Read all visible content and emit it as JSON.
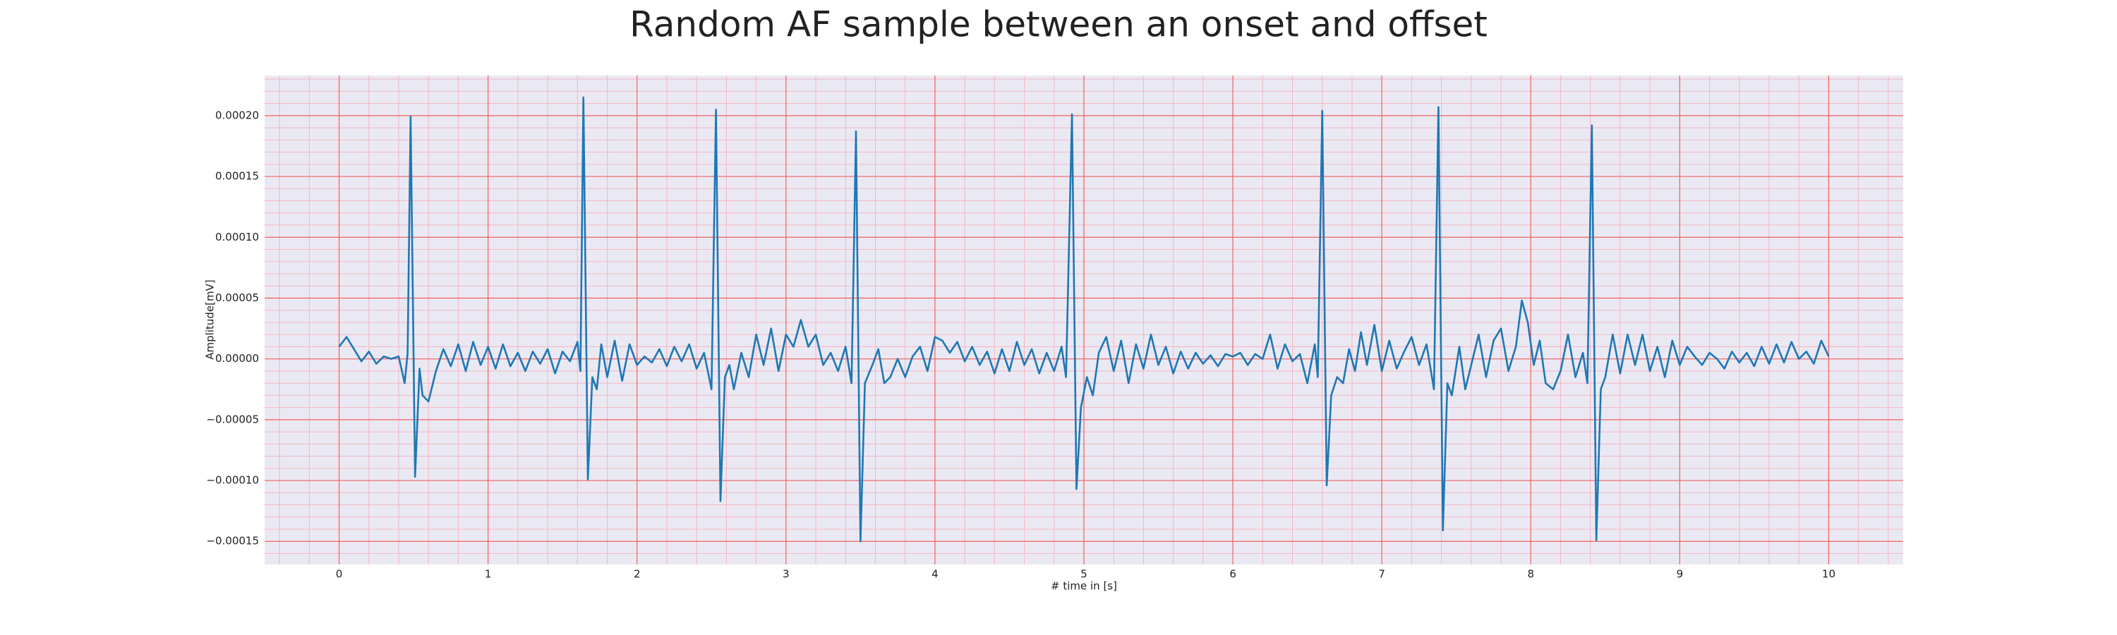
{
  "chart_data": {
    "type": "line",
    "title": "Random AF sample between an onset and offset",
    "xlabel": "# time in [s]",
    "ylabel": "Amplitude[mV]",
    "color": "#1f77b4",
    "grid": true,
    "minor_grid": true,
    "xlim": [
      -0.5,
      10.5
    ],
    "ylim": [
      -0.000169,
      0.000233
    ],
    "xticks": [
      0,
      1,
      2,
      3,
      4,
      5,
      6,
      7,
      8,
      9,
      10
    ],
    "yticks": [
      {
        "value": 0.0002,
        "label": "0.00020"
      },
      {
        "value": 0.00015,
        "label": "0.00015"
      },
      {
        "value": 0.0001,
        "label": "0.00010"
      },
      {
        "value": 5e-05,
        "label": "0.00005"
      },
      {
        "value": 0,
        "label": "0.00000"
      },
      {
        "value": -5e-05,
        "label": "−0.00005"
      },
      {
        "value": -0.0001,
        "label": "−0.00010"
      },
      {
        "value": -0.00015,
        "label": "−0.00015"
      }
    ],
    "x": [
      0,
      0.05,
      0.1,
      0.15,
      0.2,
      0.25,
      0.3,
      0.35,
      0.4,
      0.44,
      0.46,
      0.48,
      0.51,
      0.54,
      0.56,
      0.6,
      0.65,
      0.7,
      0.75,
      0.8,
      0.85,
      0.9,
      0.95,
      1,
      1.05,
      1.1,
      1.15,
      1.2,
      1.25,
      1.3,
      1.35,
      1.4,
      1.45,
      1.5,
      1.55,
      1.6,
      1.62,
      1.64,
      1.67,
      1.7,
      1.73,
      1.76,
      1.8,
      1.85,
      1.9,
      1.95,
      2,
      2.05,
      2.1,
      2.15,
      2.2,
      2.25,
      2.3,
      2.35,
      2.4,
      2.45,
      2.5,
      2.53,
      2.56,
      2.59,
      2.62,
      2.65,
      2.7,
      2.75,
      2.8,
      2.85,
      2.9,
      2.95,
      3,
      3.05,
      3.1,
      3.15,
      3.2,
      3.25,
      3.3,
      3.35,
      3.4,
      3.44,
      3.47,
      3.5,
      3.53,
      3.58,
      3.62,
      3.66,
      3.7,
      3.75,
      3.8,
      3.85,
      3.9,
      3.95,
      4,
      4.05,
      4.1,
      4.15,
      4.2,
      4.25,
      4.3,
      4.35,
      4.4,
      4.45,
      4.5,
      4.55,
      4.6,
      4.65,
      4.7,
      4.75,
      4.8,
      4.85,
      4.88,
      4.92,
      4.95,
      4.98,
      5.02,
      5.06,
      5.1,
      5.15,
      5.2,
      5.25,
      5.3,
      5.35,
      5.4,
      5.45,
      5.5,
      5.55,
      5.6,
      5.65,
      5.7,
      5.75,
      5.8,
      5.85,
      5.9,
      5.95,
      6,
      6.05,
      6.1,
      6.15,
      6.2,
      6.25,
      6.3,
      6.35,
      6.4,
      6.45,
      6.5,
      6.55,
      6.57,
      6.6,
      6.63,
      6.66,
      6.7,
      6.74,
      6.78,
      6.82,
      6.86,
      6.9,
      6.95,
      7,
      7.05,
      7.1,
      7.15,
      7.2,
      7.25,
      7.3,
      7.35,
      7.38,
      7.41,
      7.44,
      7.47,
      7.52,
      7.56,
      7.6,
      7.65,
      7.7,
      7.75,
      7.8,
      7.85,
      7.9,
      7.94,
      7.98,
      8.02,
      8.06,
      8.1,
      8.15,
      8.2,
      8.25,
      8.3,
      8.35,
      8.38,
      8.41,
      8.44,
      8.47,
      8.5,
      8.55,
      8.6,
      8.65,
      8.7,
      8.75,
      8.8,
      8.85,
      8.9,
      8.95,
      9,
      9.05,
      9.1,
      9.15,
      9.2,
      9.25,
      9.3,
      9.35,
      9.4,
      9.45,
      9.5,
      9.55,
      9.6,
      9.65,
      9.7,
      9.75,
      9.8,
      9.85,
      9.9,
      9.95,
      10
    ],
    "values": [
      1e-05,
      1.8e-05,
      8e-06,
      -2e-06,
      6e-06,
      -4e-06,
      2e-06,
      0,
      2e-06,
      -2e-05,
      5e-06,
      0.000199,
      -9.7e-05,
      -8e-06,
      -3e-05,
      -3.5e-05,
      -1e-05,
      8e-06,
      -6e-06,
      1.2e-05,
      -1e-05,
      1.4e-05,
      -5e-06,
      1e-05,
      -8e-06,
      1.2e-05,
      -6e-06,
      5e-06,
      -1e-05,
      6e-06,
      -4e-06,
      8e-06,
      -1.2e-05,
      6e-06,
      -2e-06,
      1.4e-05,
      -1e-05,
      0.000215,
      -9.9e-05,
      -1.5e-05,
      -2.5e-05,
      1.2e-05,
      -1.5e-05,
      1.5e-05,
      -1.8e-05,
      1.2e-05,
      -5e-06,
      2e-06,
      -3e-06,
      8e-06,
      -6e-06,
      1e-05,
      -2e-06,
      1.2e-05,
      -8e-06,
      5e-06,
      -2.5e-05,
      0.000205,
      -0.000117,
      -1.5e-05,
      -5e-06,
      -2.5e-05,
      5e-06,
      -1.5e-05,
      2e-05,
      -5e-06,
      2.5e-05,
      -1e-05,
      2e-05,
      1e-05,
      3.2e-05,
      1e-05,
      2e-05,
      -5e-06,
      5e-06,
      -1e-05,
      1e-05,
      -2e-05,
      0.000187,
      -0.00015,
      -2e-05,
      -5e-06,
      8e-06,
      -2e-05,
      -1.5e-05,
      0,
      -1.5e-05,
      2e-06,
      1e-05,
      -1e-05,
      1.8e-05,
      1.5e-05,
      5e-06,
      1.4e-05,
      -2e-06,
      1e-05,
      -5e-06,
      6e-06,
      -1.2e-05,
      8e-06,
      -1e-05,
      1.4e-05,
      -5e-06,
      8e-06,
      -1.2e-05,
      5e-06,
      -1e-05,
      1e-05,
      -1.5e-05,
      0.000201,
      -0.000107,
      -4e-05,
      -1.5e-05,
      -3e-05,
      5e-06,
      1.8e-05,
      -1e-05,
      1.5e-05,
      -2e-05,
      1.2e-05,
      -8e-06,
      2e-05,
      -5e-06,
      1e-05,
      -1.2e-05,
      6e-06,
      -8e-06,
      5e-06,
      -4e-06,
      3e-06,
      -6e-06,
      4e-06,
      2e-06,
      5e-06,
      -5e-06,
      4e-06,
      0,
      2e-05,
      -8e-06,
      1.2e-05,
      -2e-06,
      4e-06,
      -2e-05,
      1.2e-05,
      -1.5e-05,
      0.000204,
      -0.000104,
      -3e-05,
      -1.5e-05,
      -2e-05,
      8e-06,
      -1e-05,
      2.2e-05,
      -5e-06,
      2.8e-05,
      -1e-05,
      1.5e-05,
      -8e-06,
      6e-06,
      1.8e-05,
      -5e-06,
      1.2e-05,
      -2.5e-05,
      0.000207,
      -0.000141,
      -2e-05,
      -3e-05,
      1e-05,
      -2.5e-05,
      -5e-06,
      2e-05,
      -1.5e-05,
      1.5e-05,
      2.5e-05,
      -1e-05,
      1e-05,
      4.8e-05,
      3e-05,
      -5e-06,
      1.5e-05,
      -2e-05,
      -2.5e-05,
      -1e-05,
      2e-05,
      -1.5e-05,
      5e-06,
      -2e-05,
      0.000192,
      -0.000149,
      -2.5e-05,
      -1.5e-05,
      2e-05,
      -1.2e-05,
      2e-05,
      -5e-06,
      2e-05,
      -1e-05,
      1e-05,
      -1.5e-05,
      1.5e-05,
      -5e-06,
      1e-05,
      2e-06,
      -5e-06,
      5e-06,
      0,
      -8e-06,
      6e-06,
      -3e-06,
      5e-06,
      -6e-06,
      1e-05,
      -4e-06,
      1.2e-05,
      -3e-06,
      1.4e-05,
      0,
      6e-06,
      -4e-06,
      1.5e-05,
      2e-06
    ]
  }
}
